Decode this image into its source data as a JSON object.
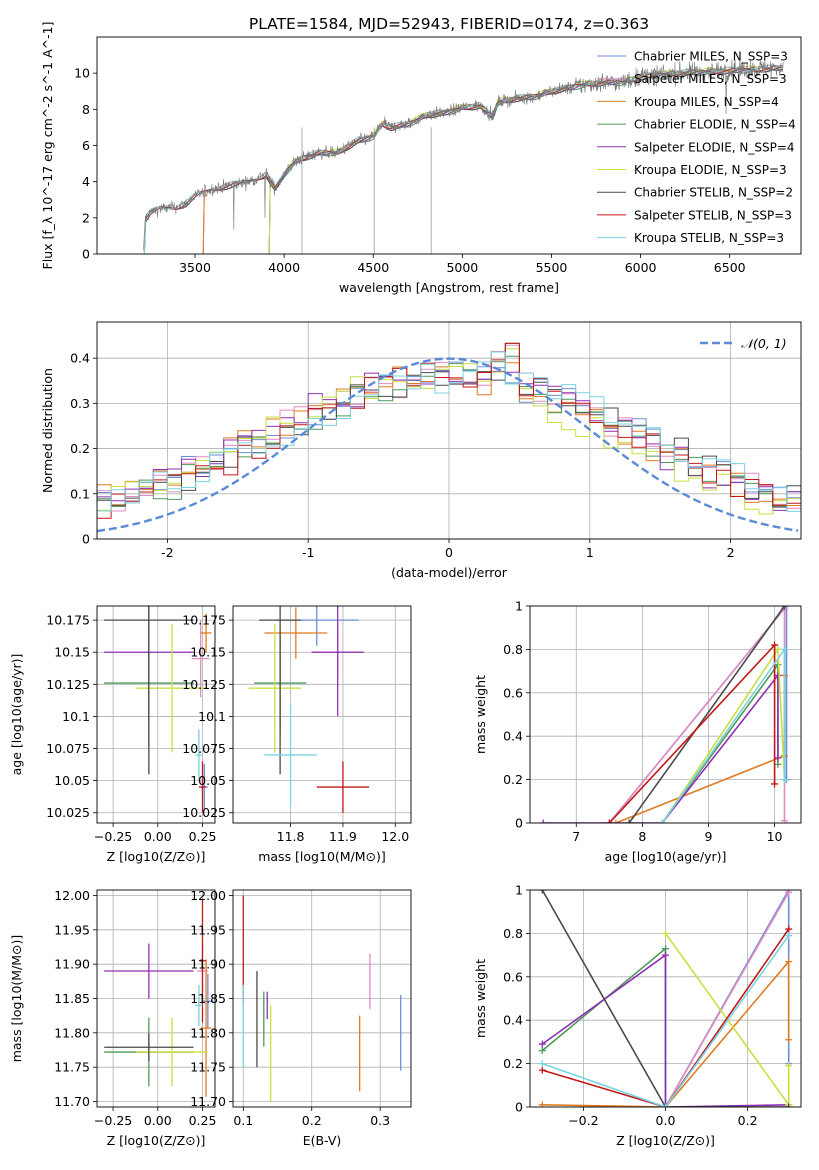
{
  "figure": {
    "title": "PLATE=1584, MJD=52943, FIBERID=0174, z=0.363"
  },
  "colors": {
    "chab_miles": "#6b8ed6",
    "salp_miles": "#e08bc2",
    "krou_miles": "#e07b22",
    "chab_elodie": "#4f9a5a",
    "salp_elodie": "#8f2fb5",
    "krou_elodie": "#c8e040",
    "chab_stelib": "#4a4a4a",
    "salp_stelib": "#c41818",
    "krou_stelib": "#7ad4e0",
    "grid": "#b0b0b0",
    "normal": "#5b8bd6"
  },
  "chart_data": [
    {
      "type": "line",
      "xlabel": "wavelength [Angstrom, rest frame]",
      "ylabel": "Flux [f_λ 10^-17 erg cm^-2 s^-1 A^-1]",
      "xlim": [
        2950,
        6900
      ],
      "ylim": [
        0,
        12
      ],
      "xticks": [
        3500,
        4000,
        4500,
        5000,
        5500,
        6000,
        6500
      ],
      "yticks": [
        0,
        2,
        4,
        6,
        8,
        10
      ],
      "legend_position": "top-right",
      "legend": [
        {
          "label": "Chabrier MILES, N_SSP=3",
          "color": "chab_miles"
        },
        {
          "label": "Salpeter MILES, N_SSP=3",
          "color": "salp_miles"
        },
        {
          "label": "Kroupa MILES, N_SSP=4",
          "color": "krou_miles"
        },
        {
          "label": "Chabrier ELODIE, N_SSP=4",
          "color": "chab_elodie"
        },
        {
          "label": "Salpeter ELODIE, N_SSP=4",
          "color": "salp_elodie"
        },
        {
          "label": "Kroupa ELODIE, N_SSP=3",
          "color": "krou_elodie"
        },
        {
          "label": "Chabrier STELIB, N_SSP=2",
          "color": "chab_stelib"
        },
        {
          "label": "Salpeter STELIB, N_SSP=3",
          "color": "salp_stelib"
        },
        {
          "label": "Kroupa STELIB, N_SSP=3",
          "color": "krou_stelib"
        }
      ],
      "continuum": [
        [
          3210,
          0
        ],
        [
          3220,
          1.9
        ],
        [
          3250,
          2.3
        ],
        [
          3300,
          2.5
        ],
        [
          3400,
          2.6
        ],
        [
          3450,
          2.8
        ],
        [
          3500,
          3.2
        ],
        [
          3600,
          3.6
        ],
        [
          3700,
          3.8
        ],
        [
          3800,
          4.0
        ],
        [
          3900,
          4.4
        ],
        [
          3950,
          3.6
        ],
        [
          4000,
          4.4
        ],
        [
          4050,
          5.0
        ],
        [
          4100,
          5.3
        ],
        [
          4200,
          5.6
        ],
        [
          4300,
          5.6
        ],
        [
          4400,
          6.2
        ],
        [
          4500,
          6.5
        ],
        [
          4550,
          7.2
        ],
        [
          4600,
          7.0
        ],
        [
          4700,
          7.2
        ],
        [
          4800,
          7.7
        ],
        [
          4900,
          7.8
        ],
        [
          5000,
          8.1
        ],
        [
          5100,
          8.2
        ],
        [
          5170,
          7.6
        ],
        [
          5200,
          8.4
        ],
        [
          5300,
          8.6
        ],
        [
          5400,
          8.7
        ],
        [
          5500,
          9.0
        ],
        [
          5600,
          9.2
        ],
        [
          5700,
          9.4
        ],
        [
          5800,
          9.5
        ],
        [
          5900,
          9.5
        ],
        [
          6000,
          9.8
        ],
        [
          6200,
          10.0
        ],
        [
          6400,
          10.1
        ],
        [
          6600,
          10.2
        ],
        [
          6800,
          10.3
        ]
      ],
      "model_ranges": {
        "chab_miles": [
          3540,
          6800
        ],
        "salp_miles": [
          3540,
          6800
        ],
        "krou_miles": [
          3540,
          6800
        ],
        "chab_elodie": [
          3910,
          6800
        ],
        "salp_elodie": [
          3910,
          6800
        ],
        "krou_elodie": [
          3910,
          6800
        ],
        "chab_stelib": [
          3210,
          6800
        ],
        "salp_stelib": [
          3210,
          6800
        ],
        "krou_stelib": [
          3210,
          6800
        ]
      }
    },
    {
      "type": "histogram",
      "xlabel": "(data-model)/error",
      "ylabel": "Normed distribution",
      "xlim": [
        -2.5,
        2.5
      ],
      "ylim": [
        0,
        0.48
      ],
      "xticks": [
        -2,
        -1,
        0,
        1,
        2
      ],
      "yticks": [
        0.0,
        0.1,
        0.2,
        0.3,
        0.4
      ],
      "legend_position": "top-right",
      "legend": [
        {
          "label": "𝒩(0, 1)",
          "color": "normal"
        }
      ],
      "bin_width": 0.1
    },
    {
      "type": "errorbar",
      "xlabel": "Z [log10(Z/Z⊙)]",
      "ylabel": "age  [log10(age/yr)]",
      "xlim": [
        -0.34,
        0.32
      ],
      "ylim": [
        10.017,
        10.186
      ],
      "xticks": [
        -0.25,
        0.0,
        0.25
      ],
      "xtick_labels": [
        "−0.25",
        "0.00",
        "0.25"
      ],
      "yticks": [
        10.025,
        10.05,
        10.075,
        10.1,
        10.125,
        10.15,
        10.175
      ],
      "points": [
        {
          "s": "chab_miles",
          "x": 0.26,
          "y": 10.045,
          "xerr": 0.02,
          "yerr": 0.018
        },
        {
          "s": "salp_miles",
          "x": 0.24,
          "y": 10.145,
          "xerr": 0.05,
          "yerr": 0.03
        },
        {
          "s": "krou_miles",
          "x": 0.27,
          "y": 10.165,
          "xerr": 0.03,
          "yerr": 0.015
        },
        {
          "s": "chab_elodie",
          "x": -0.05,
          "y": 10.126,
          "xerr": 0.25,
          "yerr": 0.05
        },
        {
          "s": "salp_elodie",
          "x": -0.05,
          "y": 10.15,
          "xerr": 0.25,
          "yerr": 0.05
        },
        {
          "s": "krou_elodie",
          "x": 0.08,
          "y": 10.122,
          "xerr": 0.2,
          "yerr": 0.05
        },
        {
          "s": "chab_stelib",
          "x": -0.05,
          "y": 10.175,
          "xerr": 0.25,
          "yerr": 0.12
        },
        {
          "s": "salp_stelib",
          "x": 0.25,
          "y": 10.045,
          "xerr": 0.02,
          "yerr": 0.02
        },
        {
          "s": "krou_stelib",
          "x": 0.23,
          "y": 10.07,
          "xerr": 0.02,
          "yerr": 0.02
        }
      ]
    },
    {
      "type": "errorbar",
      "xlabel": "mass [log10(M/M⊙)]",
      "ylabel": "",
      "xlim": [
        11.69,
        12.03
      ],
      "ylim": [
        10.017,
        10.186
      ],
      "xticks": [
        11.8,
        11.9,
        12.0
      ],
      "xtick_labels": [
        "11.8",
        "11.9",
        "12.0"
      ],
      "yticks": [
        10.025,
        10.05,
        10.075,
        10.1,
        10.125,
        10.15,
        10.175
      ],
      "points": [
        {
          "s": "chab_miles",
          "x": 11.85,
          "y": 10.175,
          "xerr": 0.08,
          "yerr": 0.02
        },
        {
          "s": "salp_miles",
          "x": 11.89,
          "y": 10.15,
          "xerr": 0.05,
          "yerr": 0.02
        },
        {
          "s": "krou_miles",
          "x": 11.81,
          "y": 10.165,
          "xerr": 0.06,
          "yerr": 0.02
        },
        {
          "s": "chab_elodie",
          "x": 11.78,
          "y": 10.126,
          "xerr": 0.05,
          "yerr": 0.04
        },
        {
          "s": "salp_elodie",
          "x": 11.89,
          "y": 10.15,
          "xerr": 0.05,
          "yerr": 0.05
        },
        {
          "s": "krou_elodie",
          "x": 11.77,
          "y": 10.122,
          "xerr": 0.05,
          "yerr": 0.05
        },
        {
          "s": "chab_stelib",
          "x": 11.78,
          "y": 10.175,
          "xerr": 0.04,
          "yerr": 0.12
        },
        {
          "s": "salp_stelib",
          "x": 11.9,
          "y": 10.045,
          "xerr": 0.05,
          "yerr": 0.02
        },
        {
          "s": "krou_stelib",
          "x": 11.8,
          "y": 10.07,
          "xerr": 0.05,
          "yerr": 0.04
        }
      ]
    },
    {
      "type": "line",
      "xlabel": "age  [log10(age/yr)]",
      "ylabel": "mass weight",
      "xlim": [
        6.3,
        10.4
      ],
      "ylim": [
        0,
        1
      ],
      "xticks": [
        7,
        8,
        9,
        10
      ],
      "yticks": [
        0.0,
        0.2,
        0.4,
        0.6,
        0.8,
        1.0
      ],
      "series": [
        {
          "s": "chab_miles",
          "x": [
            7.5,
            10.18,
            10.18
          ],
          "y": [
            0,
            1.0,
            0.2
          ]
        },
        {
          "s": "salp_miles",
          "x": [
            7.5,
            10.15,
            10.15
          ],
          "y": [
            0,
            0.99,
            0.01
          ]
        },
        {
          "s": "krou_miles",
          "x": [
            7.6,
            10.15,
            10.15
          ],
          "y": [
            0,
            0.31,
            0.68
          ]
        },
        {
          "s": "chab_elodie",
          "x": [
            8.3,
            10.05,
            10.05
          ],
          "y": [
            0,
            0.73,
            0.27
          ]
        },
        {
          "s": "salp_elodie",
          "x": [
            6.5,
            8.3,
            10.05,
            10.05
          ],
          "y": [
            0,
            0,
            0.68,
            0.3
          ]
        },
        {
          "s": "krou_elodie",
          "x": [
            8.3,
            10.05,
            10.15
          ],
          "y": [
            0,
            0.8,
            0.2
          ]
        },
        {
          "s": "chab_stelib",
          "x": [
            7.8,
            10.15
          ],
          "y": [
            0,
            1.0
          ]
        },
        {
          "s": "salp_stelib",
          "x": [
            7.5,
            10.0,
            10.0
          ],
          "y": [
            0,
            0.82,
            0.18
          ]
        },
        {
          "s": "krou_stelib",
          "x": [
            8.3,
            10.15,
            10.15
          ],
          "y": [
            0,
            0.8,
            0.2
          ]
        }
      ]
    },
    {
      "type": "errorbar",
      "xlabel": "Z [log10(Z/Z⊙)]",
      "ylabel": "mass [log10(M/M⊙)]",
      "xlim": [
        -0.34,
        0.32
      ],
      "ylim": [
        11.692,
        12.008
      ],
      "xticks": [
        -0.25,
        0.0,
        0.25
      ],
      "xtick_labels": [
        "−0.25",
        "0.00",
        "0.25"
      ],
      "yticks": [
        11.7,
        11.75,
        11.8,
        11.85,
        11.9,
        11.95,
        12.0
      ],
      "ytick_labels": [
        "11.70",
        "11.75",
        "11.80",
        "11.85",
        "11.90",
        "11.95",
        "12.00"
      ],
      "points": [
        {
          "s": "chab_miles",
          "x": 0.28,
          "y": 11.846,
          "xerr": 0.03,
          "yerr": 0.04
        },
        {
          "s": "salp_miles",
          "x": 0.25,
          "y": 11.89,
          "xerr": 0.03,
          "yerr": 0.04
        },
        {
          "s": "krou_miles",
          "x": 0.27,
          "y": 11.807,
          "xerr": 0.03,
          "yerr": 0.1
        },
        {
          "s": "chab_elodie",
          "x": -0.05,
          "y": 11.772,
          "xerr": 0.25,
          "yerr": 0.05
        },
        {
          "s": "salp_elodie",
          "x": -0.05,
          "y": 11.89,
          "xerr": 0.25,
          "yerr": 0.04
        },
        {
          "s": "krou_elodie",
          "x": 0.08,
          "y": 11.772,
          "xerr": 0.2,
          "yerr": 0.05
        },
        {
          "s": "chab_stelib",
          "x": -0.05,
          "y": 11.779,
          "xerr": 0.25,
          "yerr": 0.02
        },
        {
          "s": "salp_stelib",
          "x": 0.25,
          "y": 11.905,
          "xerr": 0.02,
          "yerr": 0.09
        },
        {
          "s": "krou_stelib",
          "x": 0.23,
          "y": 11.84,
          "xerr": 0.02,
          "yerr": 0.03
        }
      ]
    },
    {
      "type": "errorbar",
      "xlabel": "E(B-V)",
      "ylabel": "",
      "xlim": [
        0.085,
        0.345
      ],
      "ylim": [
        11.692,
        12.008
      ],
      "xticks": [
        0.1,
        0.2,
        0.3
      ],
      "xtick_labels": [
        "0.1",
        "0.2",
        "0.3"
      ],
      "yticks": [
        11.7,
        11.75,
        11.8,
        11.85,
        11.9,
        11.95,
        12.0
      ],
      "ytick_labels": [
        "11.70",
        "11.75",
        "11.80",
        "11.85",
        "11.90",
        "11.95",
        "12.00"
      ],
      "points": [
        {
          "s": "chab_miles",
          "x": 0.33,
          "y": 11.8,
          "xerr": 0,
          "yerr": 0.055
        },
        {
          "s": "salp_miles",
          "x": 0.285,
          "y": 11.875,
          "xerr": 0,
          "yerr": 0.04
        },
        {
          "s": "krou_miles",
          "x": 0.27,
          "y": 11.77,
          "xerr": 0,
          "yerr": 0.055
        },
        {
          "s": "chab_elodie",
          "x": 0.13,
          "y": 11.82,
          "xerr": 0,
          "yerr": 0.04
        },
        {
          "s": "salp_elodie",
          "x": 0.135,
          "y": 11.84,
          "xerr": 0,
          "yerr": 0.02
        },
        {
          "s": "krou_elodie",
          "x": 0.14,
          "y": 11.77,
          "xerr": 0,
          "yerr": 0.07
        },
        {
          "s": "chab_stelib",
          "x": 0.12,
          "y": 11.82,
          "xerr": 0,
          "yerr": 0.07
        },
        {
          "s": "salp_stelib",
          "x": 0.1,
          "y": 11.92,
          "xerr": 0,
          "yerr": 0.08
        },
        {
          "s": "krou_stelib",
          "x": 0.1,
          "y": 11.81,
          "xerr": 0,
          "yerr": 0.06
        }
      ]
    },
    {
      "type": "line",
      "xlabel": "Z [log10(Z/Z⊙)]",
      "ylabel": "mass weight",
      "xlim": [
        -0.33,
        0.33
      ],
      "ylim": [
        0,
        1
      ],
      "xticks": [
        -0.2,
        0.0,
        0.2
      ],
      "xtick_labels": [
        "−0.2",
        "0.0",
        "0.2"
      ],
      "yticks": [
        0.0,
        0.2,
        0.4,
        0.6,
        0.8,
        1.0
      ],
      "series": [
        {
          "s": "chab_miles",
          "x": [
            0.0,
            0.3,
            0.3
          ],
          "y": [
            0.0,
            1.0,
            0.2
          ]
        },
        {
          "s": "salp_miles",
          "x": [
            0.0,
            0.3
          ],
          "y": [
            0.0,
            0.99
          ]
        },
        {
          "s": "krou_miles",
          "x": [
            -0.3,
            0.0,
            0.3,
            0.3
          ],
          "y": [
            0.01,
            0.0,
            0.67,
            0.31
          ]
        },
        {
          "s": "chab_elodie",
          "x": [
            -0.3,
            0.0,
            0.0
          ],
          "y": [
            0.26,
            0.73,
            0.0
          ]
        },
        {
          "s": "salp_elodie",
          "x": [
            -0.3,
            0.0,
            0.0,
            0.3
          ],
          "y": [
            0.29,
            0.7,
            0.0,
            0.01
          ]
        },
        {
          "s": "krou_elodie",
          "x": [
            0.0,
            0.3,
            0.3
          ],
          "y": [
            0.8,
            0.01,
            0.19
          ]
        },
        {
          "s": "chab_stelib",
          "x": [
            -0.3,
            0.0,
            0.3
          ],
          "y": [
            1.0,
            0.0,
            0.0
          ]
        },
        {
          "s": "salp_stelib",
          "x": [
            -0.3,
            0.0,
            0.3
          ],
          "y": [
            0.17,
            0.0,
            0.82
          ]
        },
        {
          "s": "krou_stelib",
          "x": [
            -0.3,
            0.0,
            0.3
          ],
          "y": [
            0.2,
            0.0,
            0.79
          ]
        }
      ]
    }
  ]
}
